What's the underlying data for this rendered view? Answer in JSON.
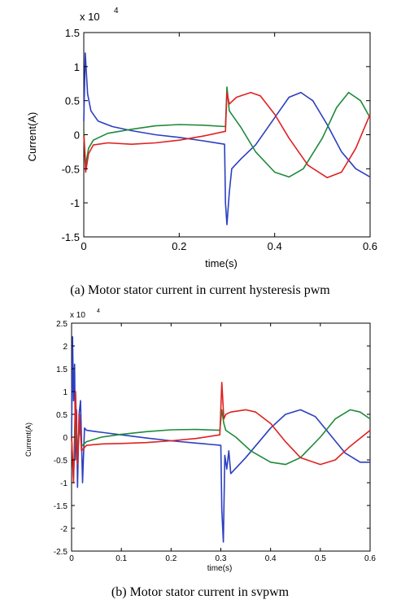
{
  "chart_data": [
    {
      "type": "line",
      "caption": "(a) Motor stator current in current hysteresis pwm",
      "xlabel": "time(s)",
      "ylabel": "Current(A)",
      "exponent_label": "x 10",
      "exponent_power": "4",
      "xlim": [
        0,
        0.6
      ],
      "ylim": [
        -1.5,
        1.5
      ],
      "xticks": [
        0,
        0.2,
        0.4,
        0.6
      ],
      "xtick_labels": [
        "0",
        "0.2",
        "0.4",
        "0.6"
      ],
      "yticks": [
        -1.5,
        -1,
        -0.5,
        0,
        0.5,
        1,
        1.5
      ],
      "ytick_labels": [
        "-1.5",
        "-1",
        "-0.5",
        "0",
        "0.5",
        "1",
        "1.5"
      ],
      "grid": false,
      "series_colors": [
        "#2b3fc0",
        "#1e8a3a",
        "#e02020"
      ],
      "series": [
        {
          "x": [
            0,
            0.003,
            0.008,
            0.015,
            0.03,
            0.06,
            0.1,
            0.15,
            0.2,
            0.25,
            0.295,
            0.297,
            0.3,
            0.305,
            0.31,
            0.33,
            0.36,
            0.4,
            0.43,
            0.455,
            0.48,
            0.51,
            0.54,
            0.57,
            0.6
          ],
          "values": [
            0.2,
            1.2,
            0.6,
            0.35,
            0.2,
            0.12,
            0.06,
            0.0,
            -0.04,
            -0.09,
            -0.14,
            -1.0,
            -1.32,
            -0.85,
            -0.5,
            -0.35,
            -0.15,
            0.25,
            0.55,
            0.62,
            0.5,
            0.15,
            -0.25,
            -0.5,
            -0.62
          ]
        },
        {
          "x": [
            0,
            0.004,
            0.01,
            0.02,
            0.05,
            0.1,
            0.15,
            0.2,
            0.25,
            0.297,
            0.3,
            0.305,
            0.33,
            0.36,
            0.4,
            0.43,
            0.46,
            0.5,
            0.53,
            0.555,
            0.58,
            0.6
          ],
          "values": [
            0.05,
            -0.45,
            -0.2,
            -0.08,
            0.02,
            0.08,
            0.13,
            0.15,
            0.14,
            0.12,
            0.7,
            0.35,
            0.1,
            -0.25,
            -0.55,
            -0.62,
            -0.5,
            -0.05,
            0.4,
            0.62,
            0.5,
            0.25
          ]
        },
        {
          "x": [
            0,
            0.004,
            0.01,
            0.02,
            0.05,
            0.1,
            0.15,
            0.2,
            0.25,
            0.297,
            0.3,
            0.305,
            0.32,
            0.35,
            0.37,
            0.4,
            0.43,
            0.47,
            0.51,
            0.54,
            0.57,
            0.6
          ],
          "values": [
            0.0,
            -0.55,
            -0.28,
            -0.15,
            -0.12,
            -0.14,
            -0.12,
            -0.08,
            -0.02,
            0.05,
            0.62,
            0.45,
            0.55,
            0.62,
            0.57,
            0.3,
            -0.05,
            -0.45,
            -0.63,
            -0.55,
            -0.2,
            0.3
          ]
        }
      ]
    },
    {
      "type": "line",
      "caption": "(b) Motor stator current in svpwm",
      "xlabel": "time(s)",
      "ylabel": "Current(A)",
      "exponent_label": "x 10",
      "exponent_power": "4",
      "xlim": [
        0,
        0.6
      ],
      "ylim": [
        -2.5,
        2.5
      ],
      "xticks": [
        0,
        0.1,
        0.2,
        0.3,
        0.4,
        0.5,
        0.6
      ],
      "xtick_labels": [
        "0",
        "0.1",
        "0.2",
        "0.3",
        "0.4",
        "0.5",
        "0.6"
      ],
      "yticks": [
        -2.5,
        -2,
        -1.5,
        -1,
        -0.5,
        0,
        0.5,
        1,
        1.5,
        2,
        2.5
      ],
      "ytick_labels": [
        "-2.5",
        "-2",
        "-1.5",
        "-1",
        "-0.5",
        "0",
        "0.5",
        "1",
        "1.5",
        "2",
        "2.5"
      ],
      "grid": false,
      "series_colors": [
        "#2b3fc0",
        "#1e8a3a",
        "#e02020"
      ],
      "series": [
        {
          "x": [
            0,
            0.002,
            0.004,
            0.006,
            0.008,
            0.01,
            0.012,
            0.015,
            0.018,
            0.022,
            0.026,
            0.03,
            0.05,
            0.1,
            0.15,
            0.2,
            0.25,
            0.3,
            0.302,
            0.305,
            0.308,
            0.312,
            0.316,
            0.32,
            0.35,
            0.4,
            0.43,
            0.46,
            0.49,
            0.52,
            0.55,
            0.58,
            0.6
          ],
          "values": [
            0.0,
            2.2,
            0.8,
            1.6,
            -0.5,
            0.6,
            -1.1,
            0.5,
            0.8,
            -1.0,
            0.2,
            0.15,
            0.12,
            0.05,
            -0.02,
            -0.08,
            -0.13,
            -0.18,
            -1.6,
            -2.3,
            -0.4,
            -0.7,
            -0.3,
            -0.8,
            -0.45,
            0.2,
            0.5,
            0.6,
            0.45,
            0.05,
            -0.35,
            -0.55,
            -0.55
          ]
        },
        {
          "x": [
            0,
            0.004,
            0.008,
            0.012,
            0.016,
            0.02,
            0.03,
            0.06,
            0.1,
            0.15,
            0.2,
            0.25,
            0.298,
            0.302,
            0.306,
            0.31,
            0.33,
            0.36,
            0.4,
            0.43,
            0.46,
            0.5,
            0.53,
            0.56,
            0.58,
            0.6
          ],
          "values": [
            0.0,
            -0.9,
            0.4,
            -0.5,
            0.3,
            -0.2,
            -0.1,
            0.0,
            0.06,
            0.12,
            0.16,
            0.17,
            0.15,
            0.6,
            0.3,
            0.15,
            0.0,
            -0.3,
            -0.55,
            -0.6,
            -0.45,
            0.0,
            0.4,
            0.6,
            0.55,
            0.4
          ]
        },
        {
          "x": [
            0,
            0.004,
            0.008,
            0.012,
            0.016,
            0.02,
            0.03,
            0.06,
            0.1,
            0.15,
            0.2,
            0.25,
            0.298,
            0.302,
            0.306,
            0.31,
            0.32,
            0.35,
            0.37,
            0.4,
            0.43,
            0.46,
            0.5,
            0.53,
            0.56,
            0.6
          ],
          "values": [
            0.0,
            -1.0,
            1.0,
            -0.6,
            0.5,
            -0.3,
            -0.18,
            -0.15,
            -0.14,
            -0.12,
            -0.08,
            -0.03,
            0.05,
            1.2,
            0.4,
            0.5,
            0.55,
            0.6,
            0.55,
            0.3,
            -0.1,
            -0.45,
            -0.6,
            -0.5,
            -0.2,
            0.15
          ]
        }
      ]
    }
  ]
}
